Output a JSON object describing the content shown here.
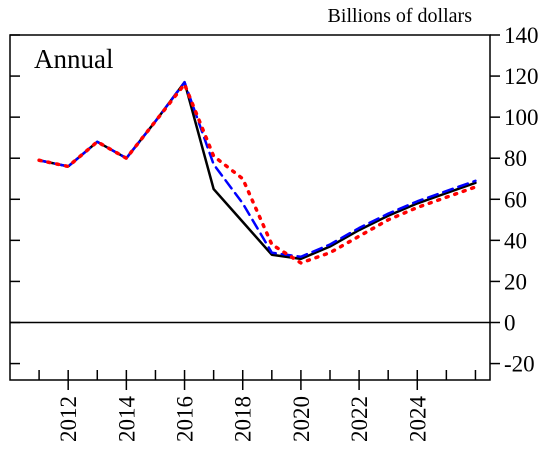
{
  "chart_data": {
    "type": "line",
    "y_label": "Billions of dollars",
    "annotation": "Annual",
    "x": [
      2011,
      2012,
      2013,
      2014,
      2015,
      2016,
      2017,
      2018,
      2019,
      2020,
      2021,
      2022,
      2023,
      2024,
      2025,
      2026
    ],
    "series": [
      {
        "color": "#000000",
        "dash": "solid",
        "values": [
          79,
          76,
          88,
          80,
          98,
          117,
          65,
          49,
          33,
          31,
          37,
          45,
          52,
          58,
          63,
          68
        ]
      },
      {
        "color": "#0000ff",
        "dash": "dashed",
        "values": [
          79,
          76,
          88,
          80,
          98,
          117,
          77,
          58,
          34,
          32,
          38,
          46,
          53,
          59,
          64,
          69
        ]
      },
      {
        "color": "#ff0000",
        "dash": "dotted",
        "values": [
          79,
          76,
          88,
          80,
          98,
          116,
          81,
          70,
          38,
          29,
          34,
          42,
          50,
          56,
          61,
          66
        ]
      }
    ],
    "xlim": [
      2010,
      2026.5
    ],
    "xticks": [
      2012,
      2014,
      2016,
      2018,
      2020,
      2022,
      2024
    ],
    "x_minor_ticks": [
      2011,
      2012,
      2013,
      2014,
      2015,
      2016,
      2017,
      2018,
      2019,
      2020,
      2021,
      2022,
      2023,
      2024,
      2025,
      2026
    ],
    "ylim": [
      -28,
      140
    ],
    "yticks": [
      -20,
      0,
      20,
      40,
      60,
      80,
      100,
      120,
      140
    ],
    "zero_line": true
  }
}
